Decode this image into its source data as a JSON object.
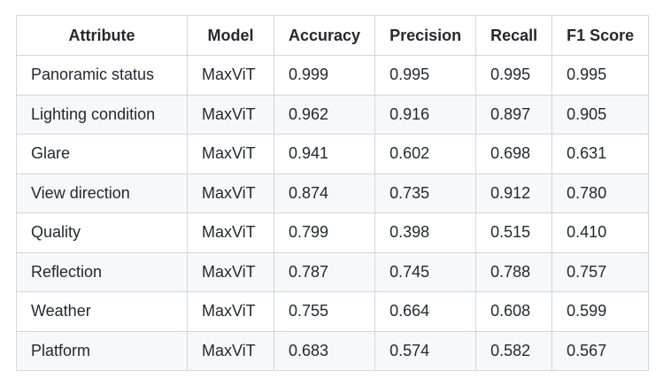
{
  "table": {
    "headers": [
      "Attribute",
      "Model",
      "Accuracy",
      "Precision",
      "Recall",
      "F1 Score"
    ],
    "rows": [
      [
        "Panoramic status",
        "MaxViT",
        "0.999",
        "0.995",
        "0.995",
        "0.995"
      ],
      [
        "Lighting condition",
        "MaxViT",
        "0.962",
        "0.916",
        "0.897",
        "0.905"
      ],
      [
        "Glare",
        "MaxViT",
        "0.941",
        "0.602",
        "0.698",
        "0.631"
      ],
      [
        "View direction",
        "MaxViT",
        "0.874",
        "0.735",
        "0.912",
        "0.780"
      ],
      [
        "Quality",
        "MaxViT",
        "0.799",
        "0.398",
        "0.515",
        "0.410"
      ],
      [
        "Reflection",
        "MaxViT",
        "0.787",
        "0.745",
        "0.788",
        "0.757"
      ],
      [
        "Weather",
        "MaxViT",
        "0.755",
        "0.664",
        "0.608",
        "0.599"
      ],
      [
        "Platform",
        "MaxViT",
        "0.683",
        "0.574",
        "0.582",
        "0.567"
      ]
    ]
  }
}
